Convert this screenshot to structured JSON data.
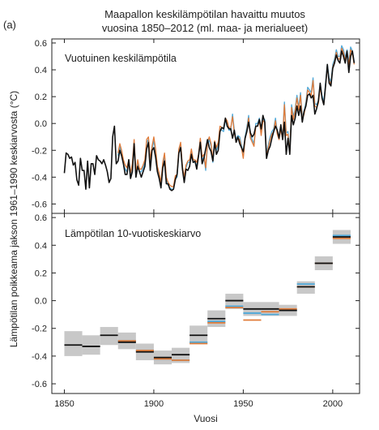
{
  "figure": {
    "panel_tag": "(a)",
    "title_line1": "Maapallon keskilämpötilan havaittu muutos",
    "title_line2": "vuosina 1850–2012 (ml. maa- ja merialueet)",
    "ylabel": "Lämpötilan poikkeama jakson 1961–1990 keskiarvosta (°C)",
    "xlabel": "Vuosi"
  },
  "colors": {
    "black": "#111111",
    "orange": "#e07b39",
    "blue": "#4fa8d8",
    "box": "#c8c8c8"
  },
  "chart_data": [
    {
      "type": "line",
      "title": "Vuotuinen keskilämpötila",
      "xlim": [
        1843,
        2015
      ],
      "ylim": [
        -0.67,
        0.63
      ],
      "yticks": [
        -0.6,
        -0.4,
        -0.2,
        0.0,
        0.2,
        0.4,
        0.6
      ],
      "ytick_labels": [
        "-0.6",
        "-0.4",
        "-0.2",
        "0.0",
        "0.2",
        "0.4",
        "0.6"
      ],
      "series": [
        {
          "color": "#111111",
          "start_year": 1850,
          "values": [
            -0.37,
            -0.22,
            -0.23,
            -0.26,
            -0.25,
            -0.31,
            -0.29,
            -0.42,
            -0.46,
            -0.26,
            -0.35,
            -0.35,
            -0.49,
            -0.28,
            -0.48,
            -0.3,
            -0.3,
            -0.38,
            -0.24,
            -0.27,
            -0.28,
            -0.3,
            -0.27,
            -0.31,
            -0.36,
            -0.44,
            -0.41,
            -0.1,
            -0.02,
            -0.3,
            -0.28,
            -0.2,
            -0.24,
            -0.3,
            -0.38,
            -0.38,
            -0.27,
            -0.41,
            -0.36,
            -0.15,
            -0.4,
            -0.32,
            -0.36,
            -0.4,
            -0.36,
            -0.32,
            -0.19,
            -0.14,
            -0.35,
            -0.2,
            -0.18,
            -0.25,
            -0.36,
            -0.41,
            -0.48,
            -0.33,
            -0.28,
            -0.45,
            -0.45,
            -0.49,
            -0.5,
            -0.49,
            -0.42,
            -0.38,
            -0.22,
            -0.18,
            -0.34,
            -0.44,
            -0.34,
            -0.35,
            -0.32,
            -0.23,
            -0.29,
            -0.28,
            -0.34,
            -0.24,
            -0.14,
            -0.3,
            -0.26,
            -0.19,
            -0.12,
            -0.18,
            -0.21,
            -0.28,
            -0.14,
            -0.23,
            -0.2,
            -0.06,
            -0.03,
            -0.04,
            0.04,
            -0.02,
            -0.04,
            -0.04,
            -0.11,
            -0.05,
            -0.14,
            -0.1,
            -0.15,
            -0.18,
            -0.21,
            -0.11,
            -0.06,
            0.01,
            -0.07,
            -0.1,
            -0.08,
            -0.02,
            -0.02,
            0.03,
            -0.04,
            0.06,
            0.01,
            -0.26,
            -0.2,
            -0.17,
            -0.11,
            -0.06,
            -0.02,
            -0.05,
            -0.11,
            -0.01,
            -0.12,
            0.01,
            -0.23,
            -0.11,
            -0.23,
            0.06,
            -0.01,
            0.04,
            0.13,
            0.06,
            0.13,
            0.01,
            0.09,
            0.13,
            0.21,
            0.22,
            0.19,
            0.21,
            0.07,
            0.11,
            0.17,
            0.3,
            0.19,
            0.14,
            0.28,
            0.44,
            0.3,
            0.28,
            0.41,
            0.45,
            0.51,
            0.47,
            0.45,
            0.54,
            0.5,
            0.45,
            0.54,
            0.38,
            0.5,
            0.54,
            0.45
          ]
        },
        {
          "color": "#4fa8d8",
          "start_year": 1880,
          "values": [
            -0.24,
            -0.17,
            -0.23,
            -0.3,
            -0.34,
            -0.36,
            -0.28,
            -0.39,
            -0.32,
            -0.14,
            -0.4,
            -0.29,
            -0.36,
            -0.36,
            -0.33,
            -0.29,
            -0.14,
            -0.12,
            -0.29,
            -0.19,
            -0.13,
            -0.21,
            -0.34,
            -0.39,
            -0.46,
            -0.31,
            -0.24,
            -0.42,
            -0.46,
            -0.48,
            -0.49,
            -0.49,
            -0.41,
            -0.4,
            -0.21,
            -0.16,
            -0.34,
            -0.42,
            -0.33,
            -0.29,
            -0.29,
            -0.21,
            -0.29,
            -0.29,
            -0.31,
            -0.25,
            -0.13,
            -0.27,
            -0.25,
            -0.35,
            -0.16,
            -0.12,
            -0.17,
            -0.29,
            -0.15,
            -0.2,
            -0.16,
            -0.04,
            -0.05,
            -0.06,
            0.02,
            0.0,
            -0.05,
            -0.05,
            0.07,
            -0.05,
            -0.12,
            -0.09,
            -0.1,
            -0.16,
            -0.24,
            -0.1,
            -0.03,
            0.06,
            -0.09,
            -0.12,
            -0.15,
            0.0,
            0.0,
            0.04,
            -0.07,
            0.04,
            0.03,
            -0.22,
            -0.16,
            -0.1,
            -0.06,
            -0.04,
            0.04,
            -0.06,
            -0.1,
            -0.02,
            -0.1,
            0.16,
            -0.07,
            -0.06,
            -0.2,
            0.14,
            0.05,
            0.11,
            0.21,
            0.12,
            0.23,
            0.05,
            0.09,
            0.16,
            0.27,
            0.25,
            0.23,
            0.34,
            0.15,
            0.14,
            0.17,
            0.29,
            0.21,
            0.16,
            0.3,
            0.44,
            0.34,
            0.31,
            0.44,
            0.48,
            0.55,
            0.5,
            0.5,
            0.58,
            0.55,
            0.49,
            0.55,
            0.46,
            0.57,
            0.54,
            0.46
          ]
        },
        {
          "color": "#e07b39",
          "start_year": 1880,
          "values": [
            -0.22,
            -0.15,
            -0.2,
            -0.27,
            -0.31,
            -0.33,
            -0.27,
            -0.37,
            -0.3,
            -0.12,
            -0.37,
            -0.27,
            -0.34,
            -0.34,
            -0.31,
            -0.27,
            -0.12,
            -0.1,
            -0.27,
            -0.17,
            -0.1,
            -0.19,
            -0.32,
            -0.37,
            -0.44,
            -0.29,
            -0.22,
            -0.4,
            -0.44,
            -0.46,
            -0.47,
            -0.47,
            -0.39,
            -0.38,
            -0.19,
            -0.14,
            -0.32,
            -0.4,
            -0.31,
            -0.28,
            -0.27,
            -0.19,
            -0.27,
            -0.27,
            -0.29,
            -0.23,
            -0.11,
            -0.25,
            -0.23,
            -0.33,
            -0.14,
            -0.1,
            -0.15,
            -0.27,
            -0.13,
            -0.18,
            -0.14,
            -0.02,
            -0.03,
            -0.04,
            0.04,
            0.02,
            -0.03,
            -0.03,
            0.05,
            -0.07,
            -0.14,
            -0.11,
            -0.12,
            -0.18,
            -0.26,
            -0.12,
            -0.05,
            0.04,
            -0.11,
            -0.14,
            -0.17,
            -0.02,
            -0.02,
            0.02,
            -0.09,
            0.02,
            0.01,
            -0.24,
            -0.18,
            -0.12,
            -0.08,
            -0.06,
            0.02,
            -0.08,
            -0.12,
            -0.04,
            -0.12,
            0.14,
            -0.09,
            -0.08,
            -0.22,
            0.12,
            0.03,
            0.09,
            0.19,
            0.1,
            0.21,
            0.03,
            0.07,
            0.14,
            0.25,
            0.23,
            0.21,
            0.32,
            0.13,
            0.12,
            0.15,
            0.27,
            0.19,
            0.14,
            0.28,
            0.42,
            0.32,
            0.29,
            0.42,
            0.46,
            0.53,
            0.48,
            0.48,
            0.56,
            0.53,
            0.47,
            0.53,
            0.44,
            0.55,
            0.52,
            0.44
          ]
        }
      ]
    },
    {
      "type": "box",
      "title": "Lämpötilan 10-vuotiskeskiarvo",
      "xlim": [
        1843,
        2015
      ],
      "ylim": [
        -0.67,
        0.63
      ],
      "yticks": [
        -0.6,
        -0.4,
        -0.2,
        0.0,
        0.2,
        0.4,
        0.6
      ],
      "ytick_labels": [
        "-0.6",
        "-0.4",
        "-0.2",
        "0.0",
        "0.2",
        "0.4",
        "0.6"
      ],
      "xticks": [
        1850,
        1900,
        1950,
        2000
      ],
      "xtick_labels": [
        "1850",
        "1900",
        "1950",
        "2000"
      ],
      "decades": [
        {
          "start": 1850,
          "end": 1860,
          "low": -0.4,
          "high": -0.22,
          "black": -0.32
        },
        {
          "start": 1860,
          "end": 1870,
          "low": -0.39,
          "high": -0.25,
          "black": -0.33
        },
        {
          "start": 1870,
          "end": 1880,
          "low": -0.32,
          "high": -0.19,
          "black": -0.25
        },
        {
          "start": 1880,
          "end": 1890,
          "low": -0.35,
          "high": -0.23,
          "black": -0.3,
          "orange": -0.29,
          "blue": -0.29
        },
        {
          "start": 1890,
          "end": 1900,
          "low": -0.43,
          "high": -0.31,
          "black": -0.37,
          "orange": -0.36,
          "blue": -0.36
        },
        {
          "start": 1900,
          "end": 1910,
          "low": -0.46,
          "high": -0.36,
          "black": -0.41,
          "orange": -0.42,
          "blue": -0.42
        },
        {
          "start": 1910,
          "end": 1920,
          "low": -0.45,
          "high": -0.34,
          "black": -0.39,
          "orange": -0.43,
          "blue": -0.43
        },
        {
          "start": 1920,
          "end": 1930,
          "low": -0.31,
          "high": -0.18,
          "black": -0.25,
          "orange": -0.31,
          "blue": -0.3
        },
        {
          "start": 1930,
          "end": 1940,
          "low": -0.19,
          "high": -0.07,
          "black": -0.13,
          "orange": -0.16,
          "blue": -0.15
        },
        {
          "start": 1940,
          "end": 1950,
          "low": -0.06,
          "high": 0.05,
          "black": 0.0,
          "orange": -0.05,
          "blue": -0.04
        },
        {
          "start": 1950,
          "end": 1960,
          "low": -0.11,
          "high": -0.01,
          "black": -0.06,
          "orange": -0.14,
          "blue": -0.09
        },
        {
          "start": 1960,
          "end": 1970,
          "low": -0.11,
          "high": -0.01,
          "black": -0.06,
          "orange": -0.08,
          "blue": -0.1
        },
        {
          "start": 1970,
          "end": 1980,
          "low": -0.11,
          "high": -0.03,
          "black": -0.07,
          "orange": -0.06,
          "blue": -0.07
        },
        {
          "start": 1980,
          "end": 1990,
          "low": 0.05,
          "high": 0.14,
          "black": 0.1,
          "orange": 0.1,
          "blue": 0.12
        },
        {
          "start": 1990,
          "end": 2000,
          "low": 0.22,
          "high": 0.32,
          "black": 0.27,
          "orange": 0.27,
          "blue": 0.27
        },
        {
          "start": 2000,
          "end": 2010,
          "low": 0.41,
          "high": 0.51,
          "black": 0.46,
          "orange": 0.45,
          "blue": 0.47
        }
      ]
    }
  ]
}
